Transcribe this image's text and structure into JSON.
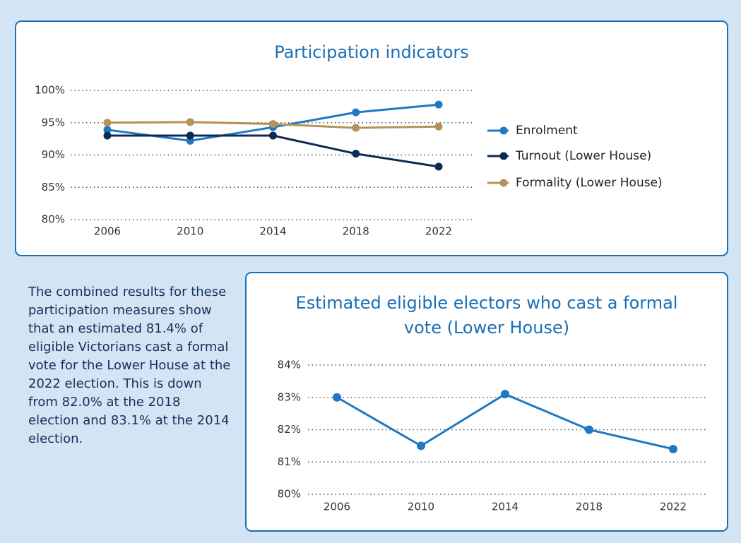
{
  "chart_data": [
    {
      "type": "line",
      "title": "Participation indicators",
      "categories": [
        "2006",
        "2010",
        "2014",
        "2018",
        "2022"
      ],
      "series": [
        {
          "name": "Enrolment",
          "color": "#1f78c1",
          "values": [
            93.9,
            92.2,
            94.3,
            96.6,
            97.8
          ]
        },
        {
          "name": "Turnout (Lower House)",
          "color": "#0d2b55",
          "values": [
            93.0,
            93.0,
            93.0,
            90.2,
            88.2
          ]
        },
        {
          "name": "Formality (Lower House)",
          "color": "#b5925a",
          "values": [
            95.0,
            95.1,
            94.8,
            94.2,
            94.4
          ]
        }
      ],
      "ylim": [
        80,
        100
      ],
      "yticks": [
        {
          "value": 80,
          "label": "80%"
        },
        {
          "value": 85,
          "label": "85%"
        },
        {
          "value": 90,
          "label": "90%"
        },
        {
          "value": 95,
          "label": "95%"
        },
        {
          "value": 100,
          "label": "100%"
        }
      ],
      "grid": true,
      "legend": "right"
    },
    {
      "type": "line",
      "title": "Estimated eligible electors who cast a formal vote (Lower House)",
      "categories": [
        "2006",
        "2010",
        "2014",
        "2018",
        "2022"
      ],
      "values": [
        83.0,
        81.5,
        83.1,
        82.0,
        81.4
      ],
      "color": "#1f78c1",
      "ylim": [
        80,
        84
      ],
      "yticks": [
        {
          "value": 80,
          "label": "80%"
        },
        {
          "value": 81,
          "label": "81%"
        },
        {
          "value": 82,
          "label": "82%"
        },
        {
          "value": 83,
          "label": "83%"
        },
        {
          "value": 84,
          "label": "84%"
        }
      ],
      "grid": true
    }
  ],
  "text": "The combined results for these participation measures show that an estimated 81.4% of eligible Victorians cast a formal vote for the Lower House at the 2022 election. This is down from 82.0% at the 2018 election and 83.1% at the 2014 election."
}
